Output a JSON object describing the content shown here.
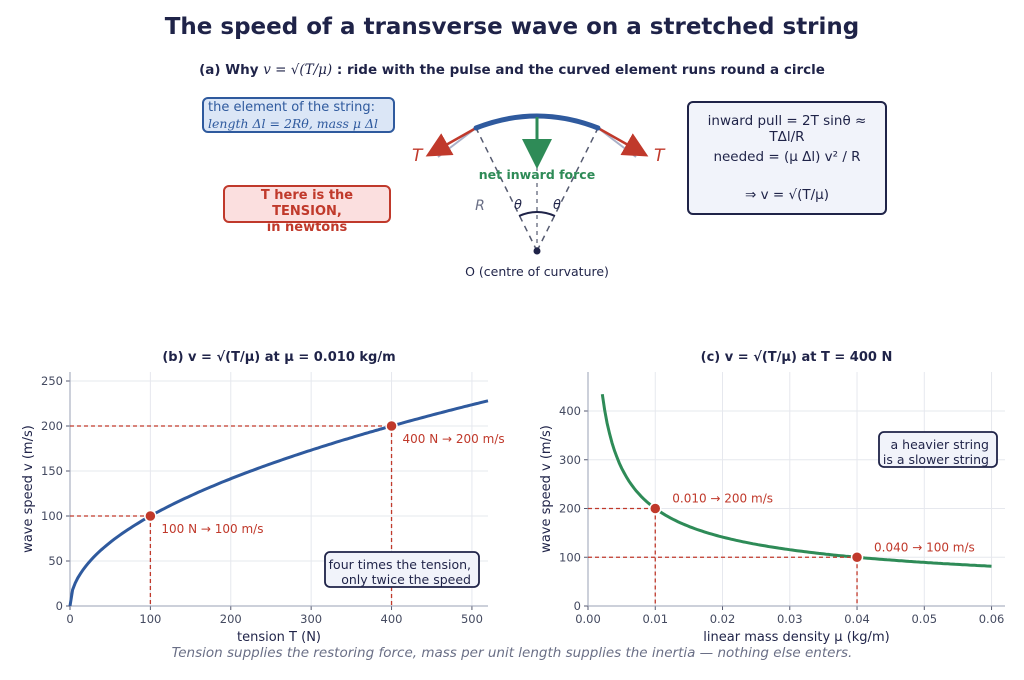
{
  "title": "The speed of a transverse wave on a stretched string",
  "part_a": {
    "heading_prefix": "(a)  Why ",
    "heading_formula": "v = √(T/μ)",
    "heading_suffix": " :  ride with the pulse and the curved element runs round a circle",
    "element_box_line1": "the element of the string:",
    "element_box_line2": "length  Δl = 2Rθ,   mass  μ Δl",
    "tension_box_line1": "T here is the TENSION,",
    "tension_box_line2": "in newtons",
    "formula_line1": "inward pull   = 2T sinθ ≈ TΔl/R",
    "formula_line2": "needed   = (μ Δl) v² / R",
    "formula_line3": "⇒  v = √(T/μ)",
    "label_T_left": "T",
    "label_T_right": "T",
    "label_net_force": "net inward force",
    "label_R": "R",
    "label_theta_left": "θ",
    "label_theta_right": "θ",
    "label_O": "O  (centre of curvature)",
    "colors": {
      "string": "#2f5a9e",
      "tension": "#c0392b",
      "force": "#2e8b57",
      "dark": "#1f2348"
    }
  },
  "caption": "Tension supplies the restoring force, mass per unit length supplies the inertia — nothing else enters.",
  "chart_data": [
    {
      "type": "line",
      "title": "(b)  v = √(T/μ)   at  μ = 0.010 kg/m",
      "xlabel": "tension  T  (N)",
      "ylabel": "wave speed  v  (m/s)",
      "xlim": [
        0,
        520
      ],
      "ylim": [
        0,
        260
      ],
      "xticks": [
        0,
        100,
        200,
        300,
        400,
        500
      ],
      "yticks": [
        0,
        50,
        100,
        150,
        200,
        250
      ],
      "grid": true,
      "series": [
        {
          "x": [
            0,
            50,
            100,
            150,
            200,
            250,
            300,
            350,
            400,
            450,
            520
          ],
          "y": [
            0,
            70.7,
            100,
            122.5,
            141.4,
            158.1,
            173.2,
            187.1,
            200,
            212.1,
            228.0
          ],
          "color": "#2f5a9e"
        }
      ],
      "markers": [
        {
          "x": 100,
          "y": 100,
          "label": "100 N → 100 m/s"
        },
        {
          "x": 400,
          "y": 200,
          "label": "400 N → 200 m/s"
        }
      ],
      "annotation": [
        "four times the tension,",
        "only twice the speed"
      ]
    },
    {
      "type": "line",
      "title": "(c)  v = √(T/μ)   at  T = 400 N",
      "xlabel": "linear mass density  μ  (kg/m)",
      "ylabel": "wave speed  v  (m/s)",
      "xlim": [
        0,
        0.062
      ],
      "ylim": [
        0,
        480
      ],
      "xticks": [
        0.0,
        0.01,
        0.02,
        0.03,
        0.04,
        0.05,
        0.06
      ],
      "xtick_labels": [
        "0.00",
        "0.01",
        "0.02",
        "0.03",
        "0.04",
        "0.05",
        "0.06"
      ],
      "yticks": [
        0,
        100,
        200,
        300,
        400
      ],
      "grid": true,
      "series": [
        {
          "x": [
            0.002,
            0.003,
            0.005,
            0.0075,
            0.01,
            0.015,
            0.02,
            0.03,
            0.04,
            0.05,
            0.06
          ],
          "y": [
            447.2,
            365.1,
            282.8,
            230.9,
            200,
            163.3,
            141.4,
            115.5,
            100,
            89.4,
            81.6
          ],
          "color": "#2e8b57"
        }
      ],
      "markers": [
        {
          "x": 0.01,
          "y": 200,
          "label": "0.010 → 200 m/s"
        },
        {
          "x": 0.04,
          "y": 100,
          "label": "0.040 → 100 m/s"
        }
      ],
      "annotation": [
        "a heavier string",
        "is a slower string"
      ]
    }
  ]
}
